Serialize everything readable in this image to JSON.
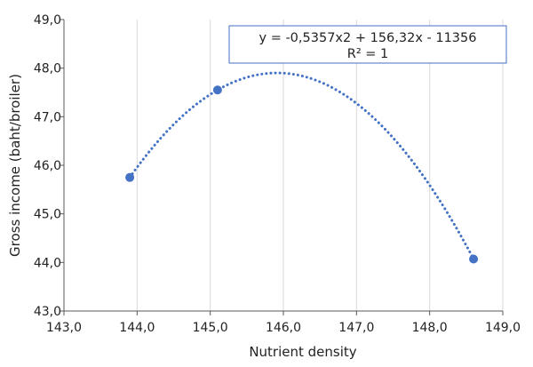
{
  "chart_data": {
    "type": "scatter",
    "xlabel": "Nutrient density",
    "ylabel": "Gross income (baht/broiler)",
    "xlim": [
      143,
      149
    ],
    "ylim": [
      43,
      49
    ],
    "x_ticks": [
      "143,0",
      "144,0",
      "145,0",
      "146,0",
      "147,0",
      "148,0",
      "149,0"
    ],
    "y_ticks": [
      "43,0",
      "44,0",
      "45,0",
      "46,0",
      "47,0",
      "48,0",
      "49,0"
    ],
    "grid": "vertical",
    "point_color": "#4472C4",
    "trendline": {
      "type": "polynomial",
      "order": 2,
      "coefficients": {
        "a": -0.5357,
        "b": 156.32,
        "c": -11356
      },
      "equation_label": "y = -0,5357x2 + 156,32x - 11356",
      "r2_label": "R² = 1",
      "style": "dotted",
      "color": "#4472C4"
    },
    "points": [
      {
        "x": 143.9,
        "y": 45.75
      },
      {
        "x": 145.1,
        "y": 47.55
      },
      {
        "x": 148.6,
        "y": 44.07
      }
    ]
  }
}
